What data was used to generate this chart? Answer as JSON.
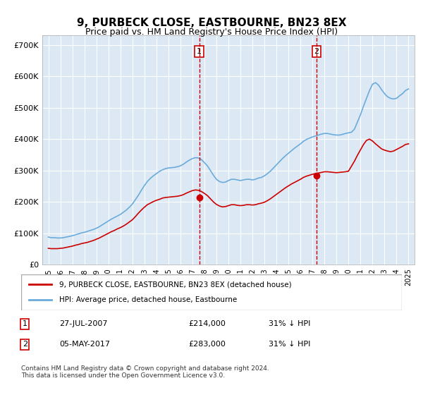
{
  "title": "9, PURBECK CLOSE, EASTBOURNE, BN23 8EX",
  "subtitle": "Price paid vs. HM Land Registry's House Price Index (HPI)",
  "background_color": "#ffffff",
  "plot_bg_color": "#dce9f5",
  "grid_color": "#ffffff",
  "hpi_color": "#6aabdb",
  "price_color": "#cc0000",
  "marker_color": "#cc0000",
  "vline_color": "#cc0000",
  "annotation_box_color": "#cc0000",
  "ylim": [
    0,
    730000
  ],
  "yticks": [
    0,
    100000,
    200000,
    300000,
    400000,
    500000,
    600000,
    700000
  ],
  "ytick_labels": [
    "£0",
    "£100K",
    "£200K",
    "£300K",
    "£400K",
    "£500K",
    "£600K",
    "£700K"
  ],
  "xlim_start": 1994.5,
  "xlim_end": 2025.5,
  "xticks": [
    1995,
    1996,
    1997,
    1998,
    1999,
    2000,
    2001,
    2002,
    2003,
    2004,
    2005,
    2006,
    2007,
    2008,
    2009,
    2010,
    2011,
    2012,
    2013,
    2014,
    2015,
    2016,
    2017,
    2018,
    2019,
    2020,
    2021,
    2022,
    2023,
    2024,
    2025
  ],
  "transaction1_x": 2007.57,
  "transaction1_y": 214000,
  "transaction1_label": "1",
  "transaction1_date": "27-JUL-2007",
  "transaction1_price": "£214,000",
  "transaction1_hpi": "31% ↓ HPI",
  "transaction2_x": 2017.34,
  "transaction2_y": 283000,
  "transaction2_label": "2",
  "transaction2_date": "05-MAY-2017",
  "transaction2_price": "£283,000",
  "transaction2_hpi": "31% ↓ HPI",
  "legend_label1": "9, PURBECK CLOSE, EASTBOURNE, BN23 8EX (detached house)",
  "legend_label2": "HPI: Average price, detached house, Eastbourne",
  "footnote": "Contains HM Land Registry data © Crown copyright and database right 2024.\nThis data is licensed under the Open Government Licence v3.0.",
  "hpi_data_x": [
    1995.0,
    1995.25,
    1995.5,
    1995.75,
    1996.0,
    1996.25,
    1996.5,
    1996.75,
    1997.0,
    1997.25,
    1997.5,
    1997.75,
    1998.0,
    1998.25,
    1998.5,
    1998.75,
    1999.0,
    1999.25,
    1999.5,
    1999.75,
    2000.0,
    2000.25,
    2000.5,
    2000.75,
    2001.0,
    2001.25,
    2001.5,
    2001.75,
    2002.0,
    2002.25,
    2002.5,
    2002.75,
    2003.0,
    2003.25,
    2003.5,
    2003.75,
    2004.0,
    2004.25,
    2004.5,
    2004.75,
    2005.0,
    2005.25,
    2005.5,
    2005.75,
    2006.0,
    2006.25,
    2006.5,
    2006.75,
    2007.0,
    2007.25,
    2007.5,
    2007.75,
    2008.0,
    2008.25,
    2008.5,
    2008.75,
    2009.0,
    2009.25,
    2009.5,
    2009.75,
    2010.0,
    2010.25,
    2010.5,
    2010.75,
    2011.0,
    2011.25,
    2011.5,
    2011.75,
    2012.0,
    2012.25,
    2012.5,
    2012.75,
    2013.0,
    2013.25,
    2013.5,
    2013.75,
    2014.0,
    2014.25,
    2014.5,
    2014.75,
    2015.0,
    2015.25,
    2015.5,
    2015.75,
    2016.0,
    2016.25,
    2016.5,
    2016.75,
    2017.0,
    2017.25,
    2017.5,
    2017.75,
    2018.0,
    2018.25,
    2018.5,
    2018.75,
    2019.0,
    2019.25,
    2019.5,
    2019.75,
    2020.0,
    2020.25,
    2020.5,
    2020.75,
    2021.0,
    2021.25,
    2021.5,
    2021.75,
    2022.0,
    2022.25,
    2022.5,
    2022.75,
    2023.0,
    2023.25,
    2023.5,
    2023.75,
    2024.0,
    2024.25,
    2024.5,
    2024.75,
    2025.0
  ],
  "hpi_data_y": [
    88000,
    86000,
    86000,
    85000,
    85000,
    86000,
    88000,
    90000,
    92000,
    95000,
    98000,
    101000,
    103000,
    106000,
    109000,
    112000,
    116000,
    121000,
    127000,
    133000,
    139000,
    145000,
    150000,
    155000,
    160000,
    167000,
    174000,
    183000,
    193000,
    207000,
    221000,
    237000,
    252000,
    265000,
    275000,
    283000,
    290000,
    297000,
    302000,
    306000,
    308000,
    309000,
    310000,
    312000,
    315000,
    320000,
    327000,
    333000,
    338000,
    341000,
    340000,
    335000,
    325000,
    315000,
    300000,
    285000,
    272000,
    265000,
    262000,
    263000,
    268000,
    272000,
    272000,
    270000,
    268000,
    270000,
    272000,
    272000,
    270000,
    272000,
    276000,
    278000,
    283000,
    290000,
    298000,
    308000,
    318000,
    328000,
    338000,
    347000,
    355000,
    363000,
    371000,
    378000,
    385000,
    393000,
    399000,
    403000,
    407000,
    410000,
    413000,
    416000,
    418000,
    418000,
    416000,
    414000,
    413000,
    413000,
    415000,
    418000,
    420000,
    422000,
    432000,
    455000,
    478000,
    505000,
    530000,
    555000,
    575000,
    580000,
    572000,
    558000,
    545000,
    535000,
    530000,
    528000,
    530000,
    538000,
    545000,
    555000,
    560000
  ],
  "price_data_x": [
    1995.0,
    1995.25,
    1995.5,
    1995.75,
    1996.0,
    1996.25,
    1996.5,
    1996.75,
    1997.0,
    1997.25,
    1997.5,
    1997.75,
    1998.0,
    1998.25,
    1998.5,
    1998.75,
    1999.0,
    1999.25,
    1999.5,
    1999.75,
    2000.0,
    2000.25,
    2000.5,
    2000.75,
    2001.0,
    2001.25,
    2001.5,
    2001.75,
    2002.0,
    2002.25,
    2002.5,
    2002.75,
    2003.0,
    2003.25,
    2003.5,
    2003.75,
    2004.0,
    2004.25,
    2004.5,
    2004.75,
    2005.0,
    2005.25,
    2005.5,
    2005.75,
    2006.0,
    2006.25,
    2006.5,
    2006.75,
    2007.0,
    2007.25,
    2007.5,
    2007.75,
    2008.0,
    2008.25,
    2008.5,
    2008.75,
    2009.0,
    2009.25,
    2009.5,
    2009.75,
    2010.0,
    2010.25,
    2010.5,
    2010.75,
    2011.0,
    2011.25,
    2011.5,
    2011.75,
    2012.0,
    2012.25,
    2012.5,
    2012.75,
    2013.0,
    2013.25,
    2013.5,
    2013.75,
    2014.0,
    2014.25,
    2014.5,
    2014.75,
    2015.0,
    2015.25,
    2015.5,
    2015.75,
    2016.0,
    2016.25,
    2016.5,
    2016.75,
    2017.0,
    2017.25,
    2017.5,
    2017.75,
    2018.0,
    2018.25,
    2018.5,
    2018.75,
    2019.0,
    2019.25,
    2019.5,
    2019.75,
    2020.0,
    2020.25,
    2020.5,
    2020.75,
    2021.0,
    2021.25,
    2021.5,
    2021.75,
    2022.0,
    2022.25,
    2022.5,
    2022.75,
    2023.0,
    2023.25,
    2023.5,
    2023.75,
    2024.0,
    2024.25,
    2024.5,
    2024.75,
    2025.0
  ],
  "price_data_y": [
    52000,
    51000,
    51000,
    51000,
    52000,
    53000,
    55000,
    57000,
    59000,
    62000,
    64000,
    67000,
    69000,
    71000,
    74000,
    77000,
    81000,
    85000,
    90000,
    95000,
    100000,
    105000,
    109000,
    114000,
    118000,
    123000,
    129000,
    136000,
    143000,
    153000,
    164000,
    174000,
    183000,
    191000,
    196000,
    201000,
    205000,
    208000,
    212000,
    214000,
    215000,
    216000,
    217000,
    218000,
    220000,
    223000,
    228000,
    232000,
    236000,
    238000,
    237000,
    233000,
    227000,
    220000,
    210000,
    200000,
    192000,
    187000,
    184000,
    185000,
    188000,
    191000,
    191000,
    189000,
    188000,
    189000,
    191000,
    191000,
    190000,
    191000,
    194000,
    196000,
    199000,
    204000,
    210000,
    217000,
    224000,
    231000,
    238000,
    245000,
    251000,
    257000,
    262000,
    267000,
    272000,
    278000,
    282000,
    285000,
    288000,
    290000,
    292000,
    294000,
    296000,
    296000,
    295000,
    294000,
    293000,
    294000,
    295000,
    296000,
    298000,
    314000,
    330000,
    349000,
    366000,
    383000,
    396000,
    400000,
    394000,
    385000,
    377000,
    369000,
    365000,
    362000,
    360000,
    362000,
    367000,
    372000,
    377000,
    383000,
    385000
  ]
}
